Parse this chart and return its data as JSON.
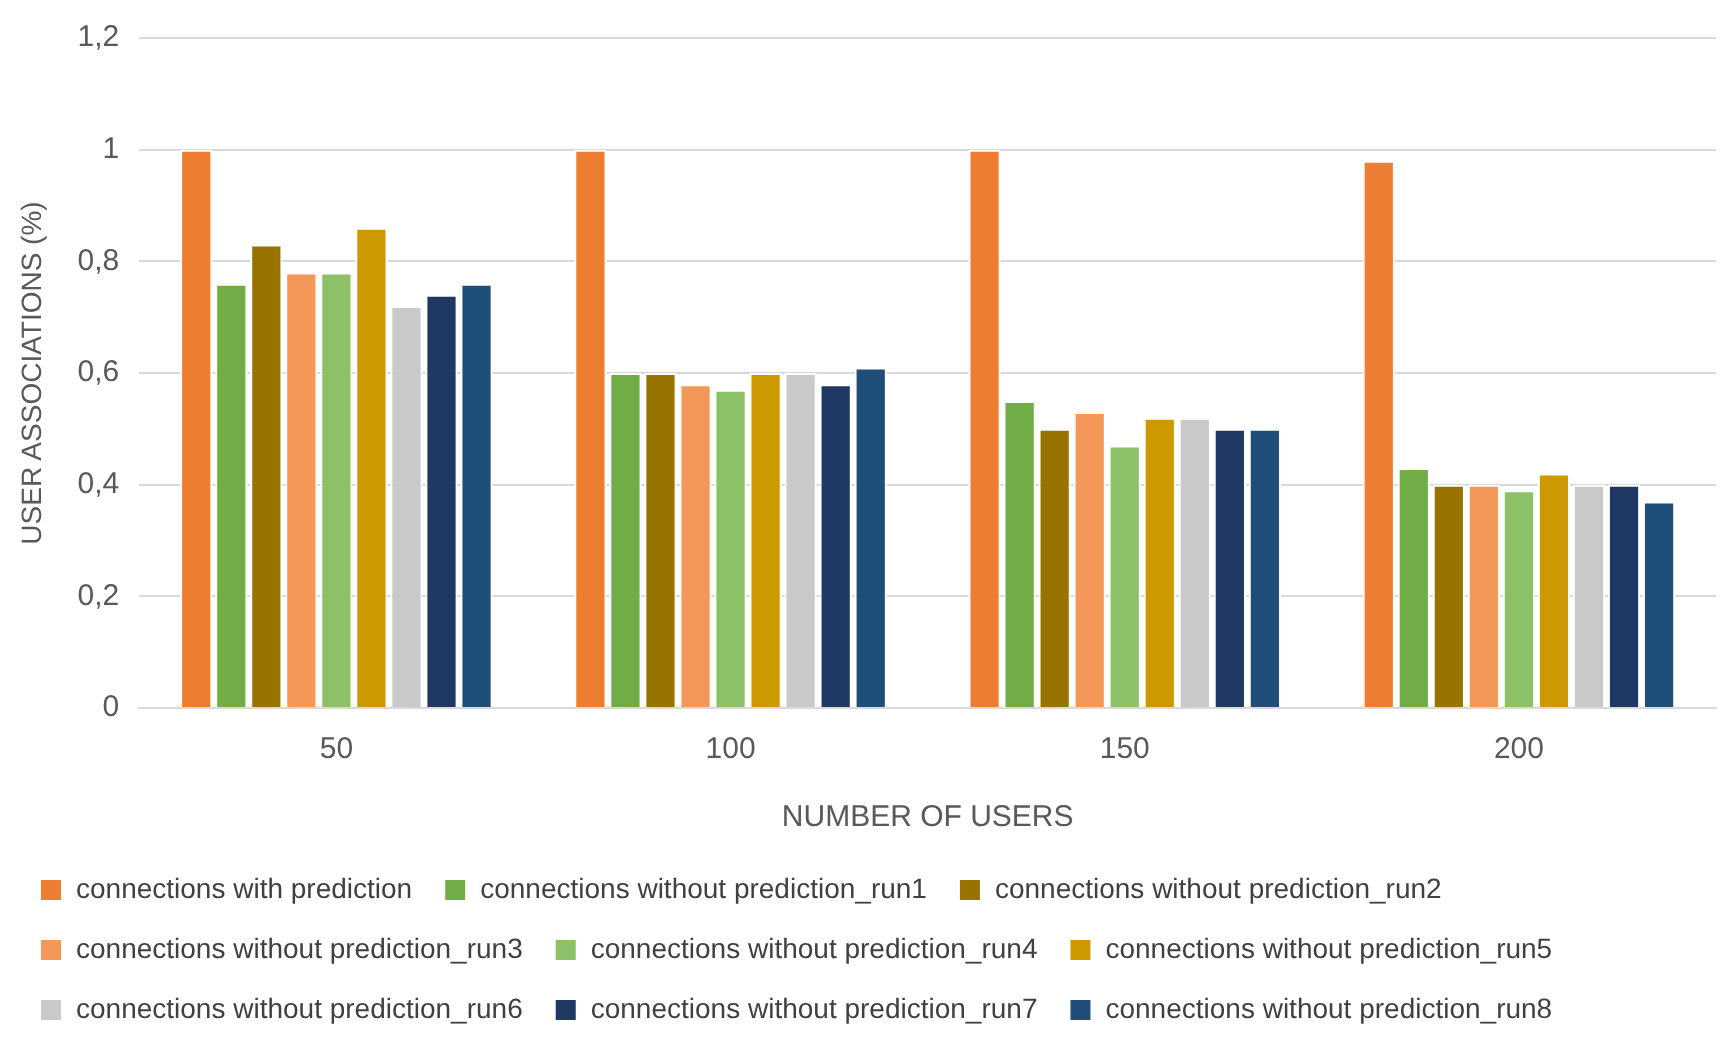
{
  "chart_data": {
    "type": "bar",
    "xlabel": "NUMBER OF USERS",
    "ylabel": "USER ASSOCIATIONS (%)",
    "categories": [
      "50",
      "100",
      "150",
      "200"
    ],
    "ylim": [
      0,
      1.2
    ],
    "yticks": [
      {
        "value": 0,
        "label": "0"
      },
      {
        "value": 0.2,
        "label": "0,2"
      },
      {
        "value": 0.4,
        "label": "0,4"
      },
      {
        "value": 0.6,
        "label": "0,6"
      },
      {
        "value": 0.8,
        "label": "0,8"
      },
      {
        "value": 1,
        "label": "1"
      },
      {
        "value": 1.2,
        "label": "1,2"
      }
    ],
    "grid": "y",
    "legend": "bottom",
    "series": [
      {
        "name": "connections with prediction",
        "color": "#ed7d31",
        "values": [
          1.0,
          1.0,
          1.0,
          0.98
        ]
      },
      {
        "name": "connections without prediction_run1",
        "color": "#70ad47",
        "values": [
          0.76,
          0.6,
          0.55,
          0.43
        ]
      },
      {
        "name": "connections without prediction_run2",
        "color": "#997300",
        "values": [
          0.83,
          0.6,
          0.5,
          0.4
        ]
      },
      {
        "name": "connections without prediction_run3",
        "color": "#f4985a",
        "values": [
          0.78,
          0.58,
          0.53,
          0.4
        ]
      },
      {
        "name": "connections without prediction_run4",
        "color": "#8cc168",
        "values": [
          0.78,
          0.57,
          0.47,
          0.39
        ]
      },
      {
        "name": "connections without prediction_run5",
        "color": "#cc9a00",
        "values": [
          0.86,
          0.6,
          0.52,
          0.42
        ]
      },
      {
        "name": "connections without prediction_run6",
        "color": "#c9c9c9",
        "values": [
          0.72,
          0.6,
          0.52,
          0.4
        ]
      },
      {
        "name": "connections without prediction_run7",
        "color": "#203864",
        "values": [
          0.74,
          0.58,
          0.5,
          0.4
        ]
      },
      {
        "name": "connections without prediction_run8",
        "color": "#1f4e79",
        "values": [
          0.76,
          0.61,
          0.5,
          0.37
        ]
      }
    ]
  }
}
